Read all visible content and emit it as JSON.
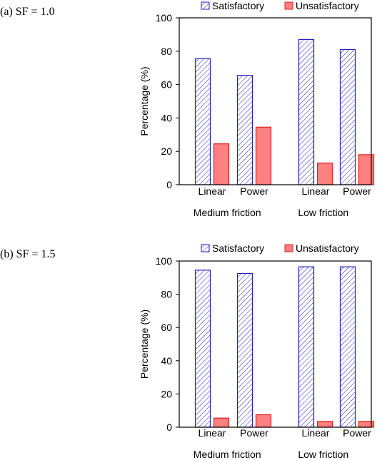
{
  "chart_data": [
    {
      "type": "bar",
      "panel_label": "(a) SF = 1.0",
      "ylabel": "Percentage  (%)",
      "ylim": [
        0,
        100
      ],
      "yticks": [
        0,
        20,
        40,
        60,
        80,
        100
      ],
      "grid": false,
      "legend": "top",
      "groups": [
        {
          "label": "Medium friction",
          "categories": [
            "Linear",
            "Power"
          ]
        },
        {
          "label": "Low friction",
          "categories": [
            "Linear",
            "Power"
          ]
        }
      ],
      "categories": [
        "Linear",
        "Power",
        "Linear",
        "Power"
      ],
      "series": [
        {
          "name": "Satisfactory",
          "values": [
            75.5,
            65.5,
            87,
            81
          ],
          "color": "#1f1fbf",
          "pattern": "hatched"
        },
        {
          "name": "Unsatisfactory",
          "values": [
            24.5,
            34.5,
            13,
            18
          ],
          "color": "#ff8080",
          "edge": "#e02020"
        }
      ]
    },
    {
      "type": "bar",
      "panel_label": "(b) SF = 1.5",
      "ylabel": "Percentage  (%)",
      "ylim": [
        0,
        100
      ],
      "yticks": [
        0,
        20,
        40,
        60,
        80,
        100
      ],
      "grid": false,
      "legend": "top",
      "groups": [
        {
          "label": "Medium friction",
          "categories": [
            "Linear",
            "Power"
          ]
        },
        {
          "label": "Low friction",
          "categories": [
            "Linear",
            "Power"
          ]
        }
      ],
      "categories": [
        "Linear",
        "Power",
        "Linear",
        "Power"
      ],
      "series": [
        {
          "name": "Satisfactory",
          "values": [
            94.5,
            92.5,
            96.5,
            96.5
          ],
          "color": "#1f1fbf",
          "pattern": "hatched"
        },
        {
          "name": "Unsatisfactory",
          "values": [
            5.5,
            7.5,
            3.5,
            3.5
          ],
          "color": "#ff8080",
          "edge": "#e02020"
        }
      ]
    }
  ]
}
